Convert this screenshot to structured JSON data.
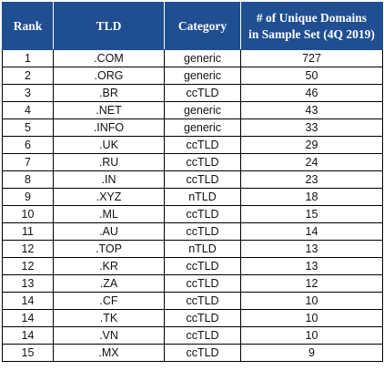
{
  "table": {
    "headers": {
      "rank": "Rank",
      "tld": "TLD",
      "category": "Category",
      "count_line1": "# of Unique Domains",
      "count_line2": "in Sample Set (4Q 2019)"
    },
    "rows": [
      {
        "rank": "1",
        "tld": ".COM",
        "category": "generic",
        "count": "727"
      },
      {
        "rank": "2",
        "tld": ".ORG",
        "category": "generic",
        "count": "50"
      },
      {
        "rank": "3",
        "tld": ".BR",
        "category": "ccTLD",
        "count": "46"
      },
      {
        "rank": "4",
        "tld": ".NET",
        "category": "generic",
        "count": "43"
      },
      {
        "rank": "5",
        "tld": ".INFO",
        "category": "generic",
        "count": "33"
      },
      {
        "rank": "6",
        "tld": ".UK",
        "category": "ccTLD",
        "count": "29"
      },
      {
        "rank": "7",
        "tld": ".RU",
        "category": "ccTLD",
        "count": "24"
      },
      {
        "rank": "8",
        "tld": ".IN",
        "category": "ccTLD",
        "count": "23"
      },
      {
        "rank": "9",
        "tld": ".XYZ",
        "category": "nTLD",
        "count": "18"
      },
      {
        "rank": "10",
        "tld": ".ML",
        "category": "ccTLD",
        "count": "15"
      },
      {
        "rank": "11",
        "tld": ".AU",
        "category": "ccTLD",
        "count": "14"
      },
      {
        "rank": "12",
        "tld": ".TOP",
        "category": "nTLD",
        "count": "13"
      },
      {
        "rank": "12",
        "tld": ".KR",
        "category": "ccTLD",
        "count": "13"
      },
      {
        "rank": "13",
        "tld": ".ZA",
        "category": "ccTLD",
        "count": "12"
      },
      {
        "rank": "14",
        "tld": ".CF",
        "category": "ccTLD",
        "count": "10"
      },
      {
        "rank": "14",
        "tld": ".TK",
        "category": "ccTLD",
        "count": "10"
      },
      {
        "rank": "14",
        "tld": ".VN",
        "category": "ccTLD",
        "count": "10"
      },
      {
        "rank": "15",
        "tld": ".MX",
        "category": "ccTLD",
        "count": "9"
      }
    ]
  },
  "colors": {
    "header_bg": "#1f4e91",
    "header_text": "#ffffff",
    "border": "#000000"
  }
}
